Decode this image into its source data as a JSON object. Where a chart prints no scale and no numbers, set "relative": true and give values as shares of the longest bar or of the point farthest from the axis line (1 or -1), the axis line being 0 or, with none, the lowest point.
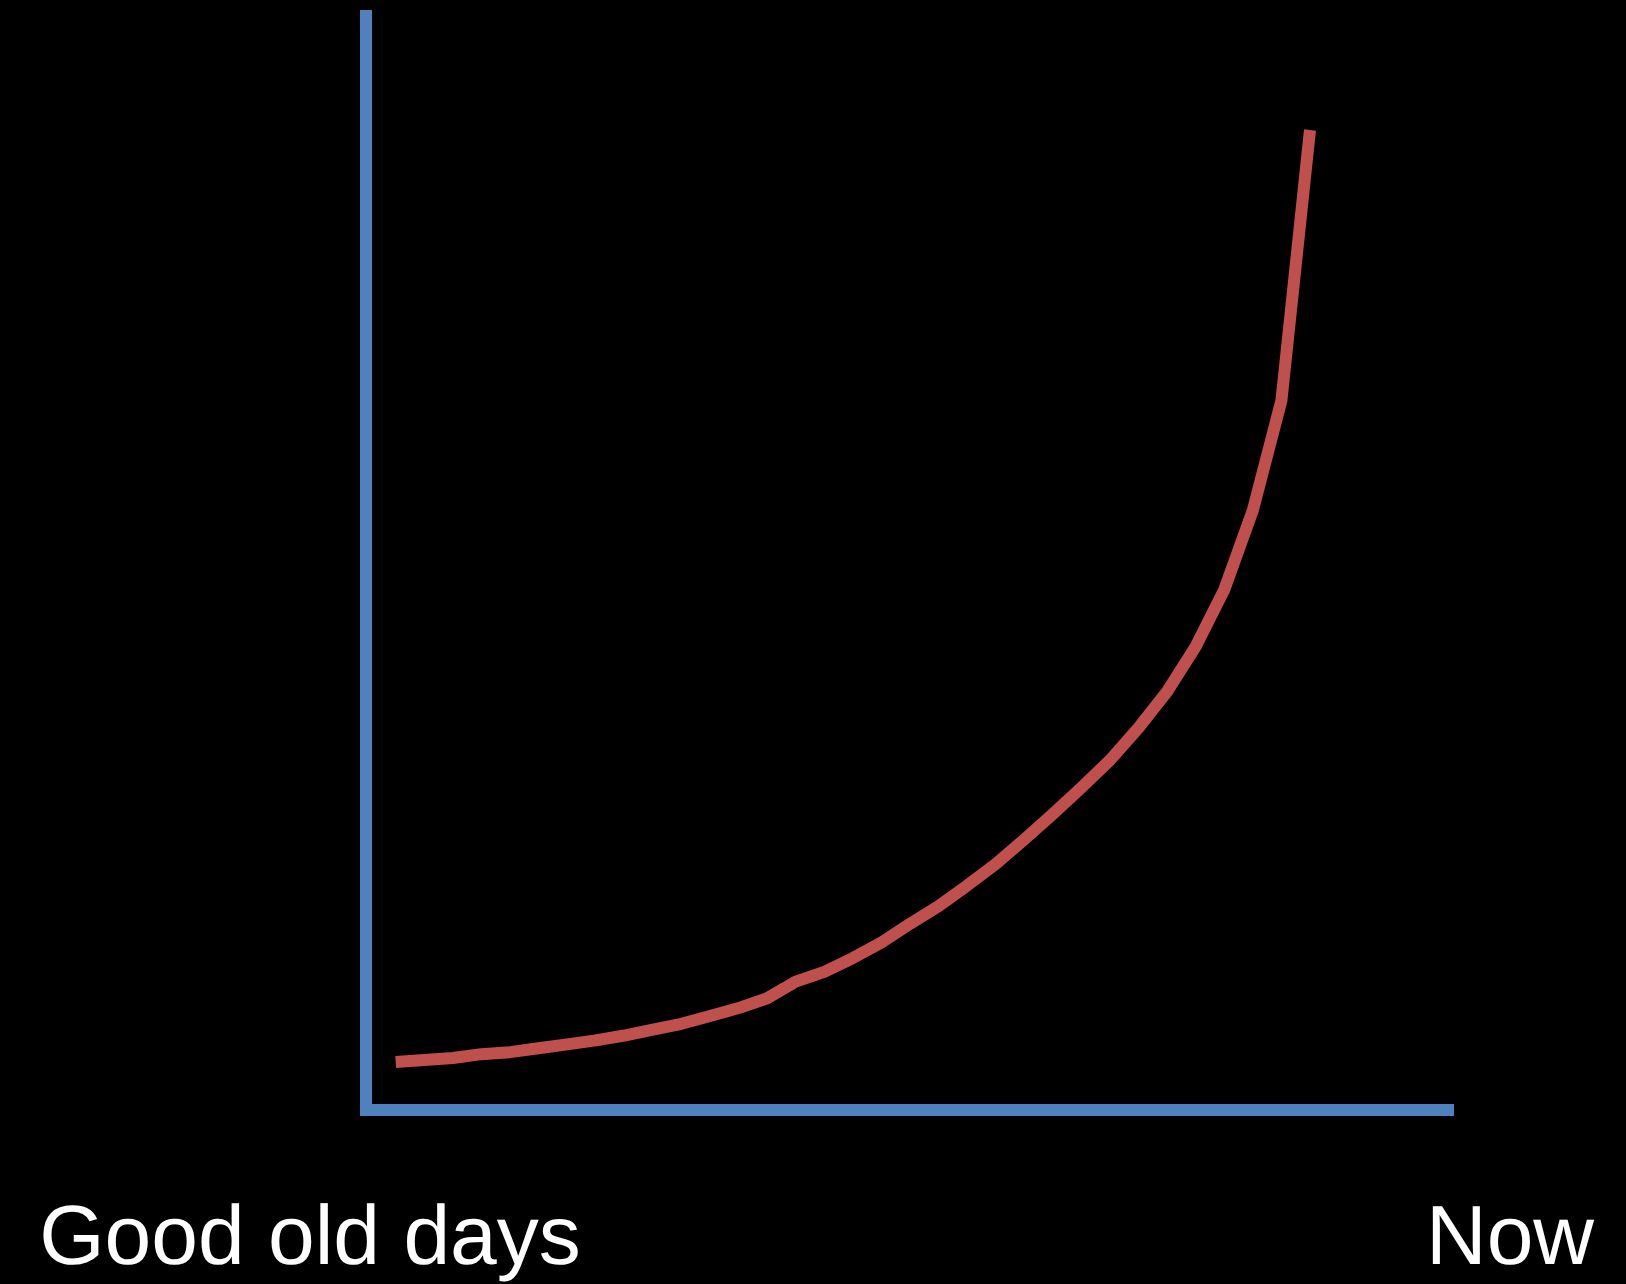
{
  "chart_data": {
    "type": "line",
    "relative": true,
    "categories": [
      "Good old days",
      null,
      null,
      null,
      null,
      null,
      null,
      null,
      null,
      null,
      null,
      null,
      null,
      null,
      null,
      null,
      null,
      null,
      null,
      null,
      null,
      null,
      null,
      null,
      null,
      null,
      null,
      null,
      null,
      null,
      null,
      null,
      null,
      null,
      null,
      null,
      null,
      null,
      null,
      null,
      null,
      null,
      "Now"
    ],
    "series": [
      {
        "color": "#c0504d",
        "values": [
          null,
          null,
          null,
          0.049,
          0.051,
          0.053,
          0.057,
          0.059,
          0.063,
          0.067,
          0.071,
          0.076,
          0.082,
          0.088,
          0.096,
          0.104,
          0.114,
          0.131,
          0.141,
          0.155,
          0.171,
          0.19,
          0.208,
          0.229,
          0.251,
          0.276,
          0.302,
          0.329,
          0.357,
          0.39,
          0.427,
          0.473,
          0.531,
          0.612,
          0.724,
          1,
          null,
          null,
          null,
          null,
          null,
          null,
          null
        ]
      }
    ],
    "marker": "none",
    "line_style": "solid"
  }
}
